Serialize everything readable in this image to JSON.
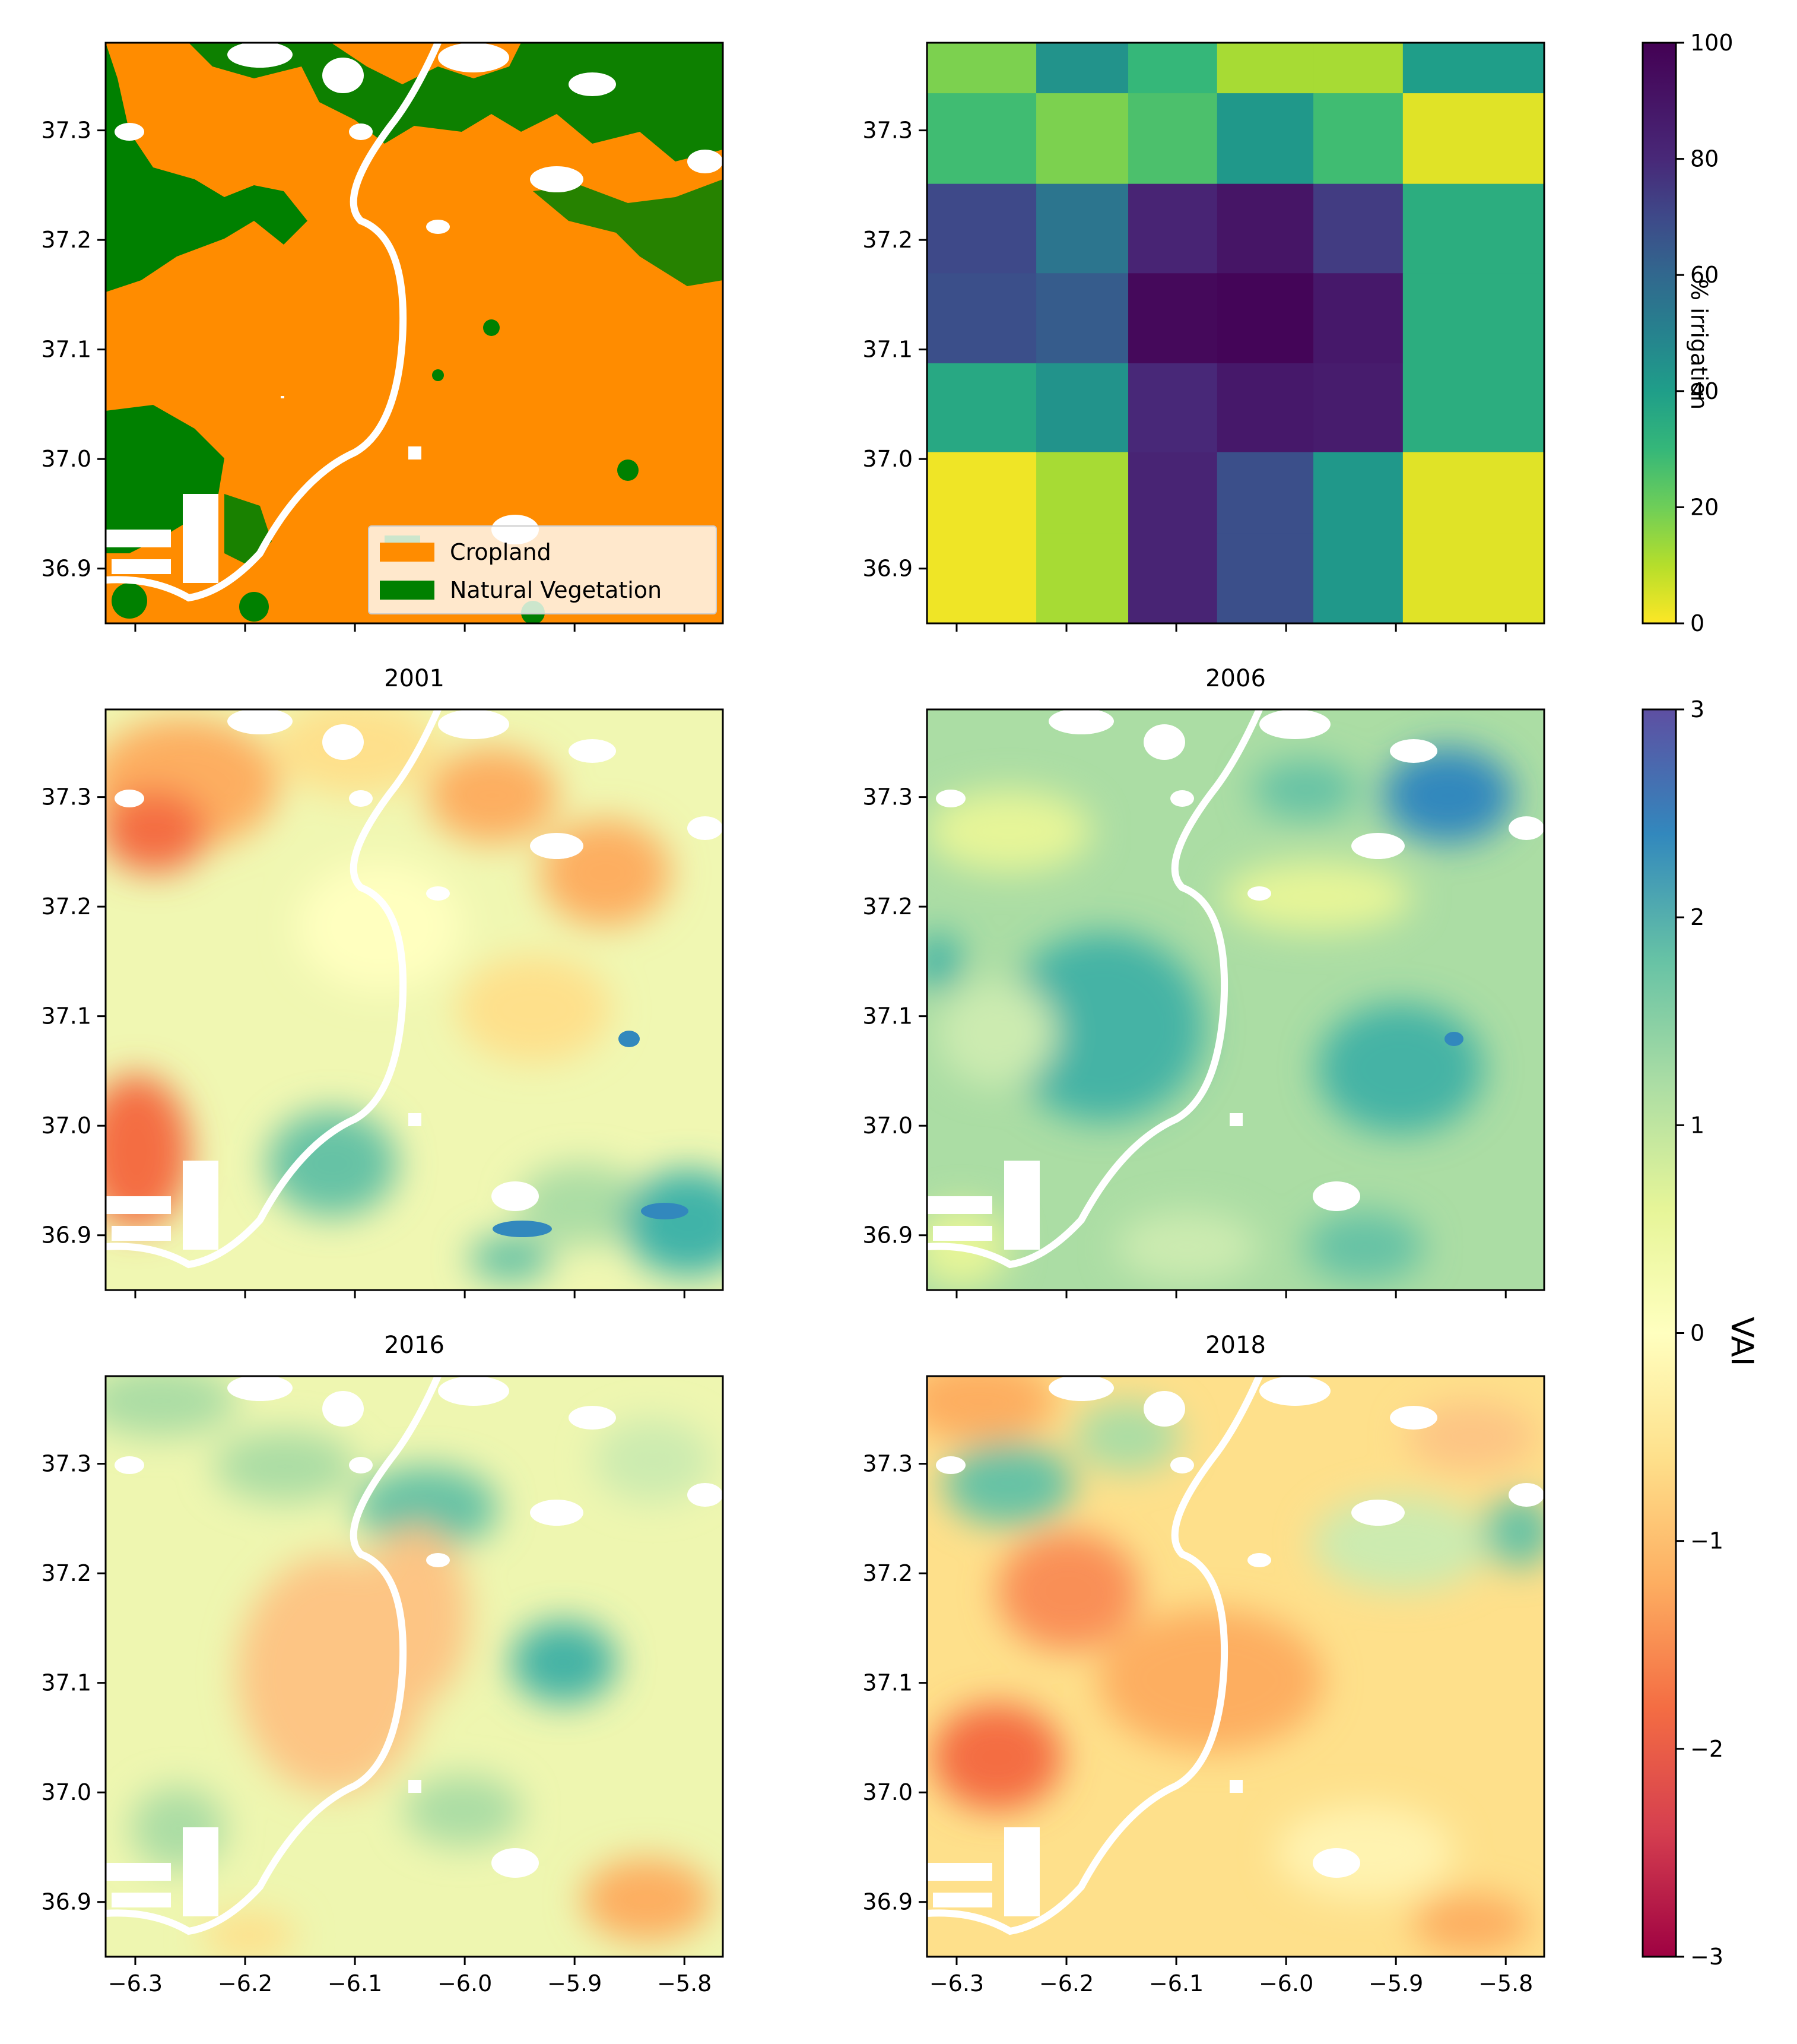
{
  "colors": {
    "cropland": "#ff8c00",
    "natural_vegetation": "#008000",
    "no_data": "#ffffff",
    "frame": "#000000"
  },
  "legend": {
    "items": [
      {
        "label": "Cropland",
        "color": "#ff8c00"
      },
      {
        "label": "Natural Vegetation",
        "color": "#008000"
      }
    ]
  },
  "axes": {
    "x_ticks": [
      "−6.3",
      "−6.2",
      "−6.1",
      "−6.0",
      "−5.9",
      "−5.8"
    ],
    "x_tick_values": [
      -6.3,
      -6.2,
      -6.1,
      -6.0,
      -5.9,
      -5.8
    ],
    "y_ticks": [
      "37.3",
      "37.2",
      "37.1",
      "37.0",
      "36.9"
    ],
    "y_tick_values": [
      37.3,
      37.2,
      37.1,
      37.0,
      36.9
    ],
    "xlim": [
      -6.327,
      -5.765
    ],
    "ylim": [
      36.85,
      37.38
    ]
  },
  "chart_data": [
    {
      "type": "heatmap",
      "panel": "land-cover",
      "title": "",
      "categories": [
        "Cropland",
        "Natural Vegetation"
      ],
      "description_units": "categorical"
    },
    {
      "type": "heatmap",
      "panel": "irrigation",
      "title": "",
      "colorbar_label": "% irrigation",
      "colorbar_ticks": [
        "0",
        "20",
        "40",
        "60",
        "80",
        "100"
      ],
      "colorbar_range": [
        0,
        100
      ],
      "x_centers": [
        -6.3,
        -6.2,
        -6.1,
        -6.0,
        -5.9,
        -5.8
      ],
      "y_centers": [
        37.35,
        37.3,
        37.2,
        37.1,
        37.0,
        36.9
      ],
      "values": [
        [
          18,
          44,
          30,
          12,
          12,
          40
        ],
        [
          28,
          18,
          26,
          42,
          28,
          4
        ],
        [
          70,
          55,
          82,
          90,
          74,
          34
        ],
        [
          68,
          64,
          96,
          98,
          88,
          34
        ],
        [
          36,
          44,
          80,
          88,
          86,
          34
        ],
        [
          2,
          12,
          82,
          68,
          42,
          4
        ]
      ]
    },
    {
      "type": "heatmap",
      "panel": "vai-2001",
      "title": "2001",
      "colorbar_label": "VAI"
    },
    {
      "type": "heatmap",
      "panel": "vai-2006",
      "title": "2006",
      "colorbar_label": "VAI"
    },
    {
      "type": "heatmap",
      "panel": "vai-2016",
      "title": "2016",
      "colorbar_label": "VAI"
    },
    {
      "type": "heatmap",
      "panel": "vai-2018",
      "title": "2018",
      "colorbar_label": "VAI"
    }
  ],
  "vai_colorbar": {
    "label": "VAI",
    "ticks": [
      "3",
      "2",
      "1",
      "0",
      "−1",
      "−2",
      "−3"
    ],
    "tick_values": [
      3,
      2,
      1,
      0,
      -1,
      -2,
      -3
    ],
    "range": [
      -3,
      3
    ]
  },
  "panel_titles": {
    "p2001": "2001",
    "p2006": "2006",
    "p2016": "2016",
    "p2018": "2018"
  },
  "irrigation_colorbar": {
    "label": "% irrigation",
    "ticks": [
      "100",
      "80",
      "60",
      "40",
      "20",
      "0"
    ],
    "tick_values": [
      100,
      80,
      60,
      40,
      20,
      0
    ]
  }
}
